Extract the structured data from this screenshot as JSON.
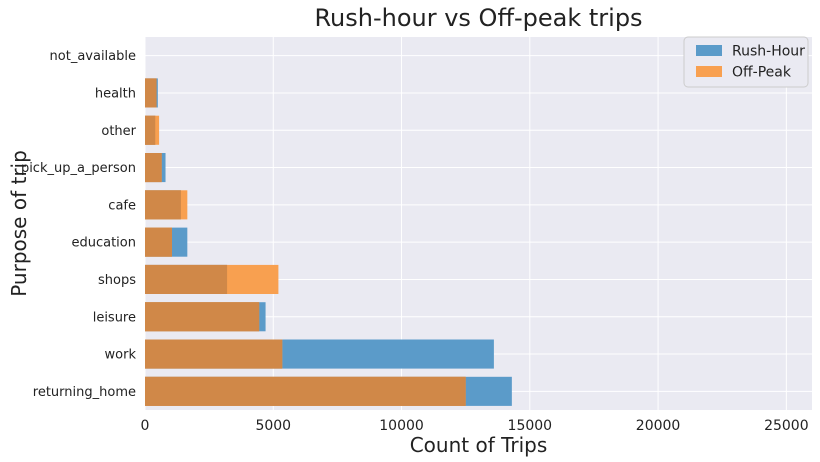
{
  "chart_data": {
    "type": "bar",
    "orientation": "horizontal",
    "title": "Rush-hour vs Off-peak trips",
    "xlabel": "Count of Trips",
    "ylabel": "Purpose of trip",
    "categories": [
      "returning_home",
      "work",
      "leisure",
      "shops",
      "education",
      "cafe",
      "pick_up_a_person",
      "other",
      "health",
      "not_available"
    ],
    "series": [
      {
        "name": "Rush-Hour",
        "color": "#5b9bc9",
        "values": [
          14300,
          13600,
          4700,
          3200,
          1650,
          1400,
          800,
          400,
          500,
          0
        ]
      },
      {
        "name": "Off-Peak",
        "color": "#f8a050",
        "values": [
          12500,
          5350,
          4450,
          5200,
          1050,
          1650,
          650,
          550,
          450,
          0
        ]
      }
    ],
    "xlim": [
      0,
      26000
    ],
    "xticks": [
      0,
      5000,
      10000,
      15000,
      20000,
      25000
    ],
    "overlap_color": "#d08848",
    "grid": true,
    "legend_position": "top-right",
    "background": "#eaeaf2"
  }
}
